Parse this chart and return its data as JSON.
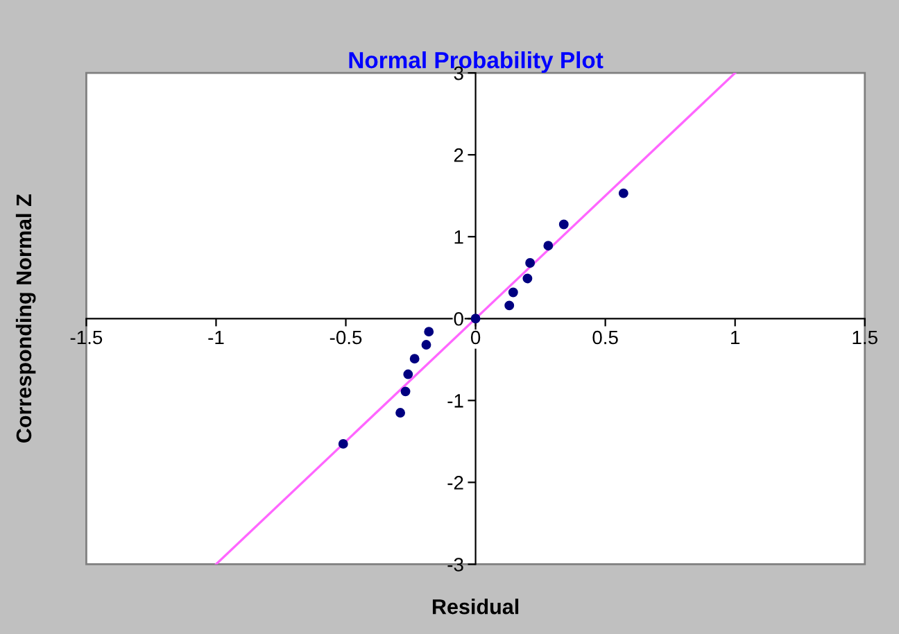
{
  "chart_data": {
    "type": "scatter",
    "title": "Normal Probability Plot",
    "xlabel": "Residual",
    "ylabel": "Corresponding Normal Z",
    "xlim": [
      -1.5,
      1.5
    ],
    "xticks": [
      -1.5,
      -1,
      -0.5,
      0,
      0.5,
      1,
      1.5
    ],
    "ylim": [
      -3,
      3
    ],
    "yticks": [
      -3,
      -2,
      -1,
      0,
      1,
      2,
      3
    ],
    "grid": false,
    "series": [
      {
        "marker": "circle",
        "color": "#000080",
        "x": [
          -0.51,
          -0.29,
          -0.27,
          -0.26,
          -0.235,
          -0.19,
          -0.18,
          0.0,
          0.13,
          0.145,
          0.2,
          0.21,
          0.28,
          0.34,
          0.57
        ],
        "values": [
          -1.53,
          -1.15,
          -0.89,
          -0.68,
          -0.49,
          -0.32,
          -0.16,
          0.0,
          0.16,
          0.32,
          0.49,
          0.68,
          0.89,
          1.15,
          1.53
        ]
      },
      {
        "type": "line",
        "marker": "none",
        "color": "#ff66ff",
        "x": [
          -1.0,
          1.0
        ],
        "values": [
          -3,
          3
        ]
      }
    ]
  }
}
